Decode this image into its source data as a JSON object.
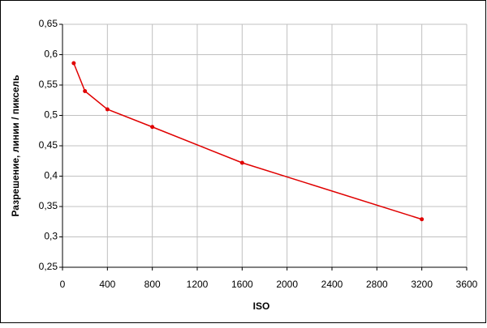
{
  "chart_data": {
    "type": "line",
    "x_label": "ISO",
    "y_label": "Разрешение, линии / пиксель",
    "x": [
      100,
      200,
      400,
      800,
      1600,
      3200
    ],
    "values": [
      0.586,
      0.54,
      0.51,
      0.481,
      0.422,
      0.329
    ],
    "color": "#e00000",
    "xlim": [
      0,
      3600
    ],
    "xticks": [
      0,
      400,
      800,
      1200,
      1600,
      2000,
      2400,
      2800,
      3200,
      3600
    ],
    "ylim": [
      0.25,
      0.65
    ],
    "yticks": [
      {
        "value": 0.25,
        "label": "0,25"
      },
      {
        "value": 0.3,
        "label": "0,3"
      },
      {
        "value": 0.35,
        "label": "0,35"
      },
      {
        "value": 0.4,
        "label": "0,4"
      },
      {
        "value": 0.45,
        "label": "0,45"
      },
      {
        "value": 0.5,
        "label": "0,5"
      },
      {
        "value": 0.55,
        "label": "0,55"
      },
      {
        "value": 0.6,
        "label": "0,6"
      },
      {
        "value": 0.65,
        "label": "0,65"
      }
    ],
    "grid": true
  }
}
